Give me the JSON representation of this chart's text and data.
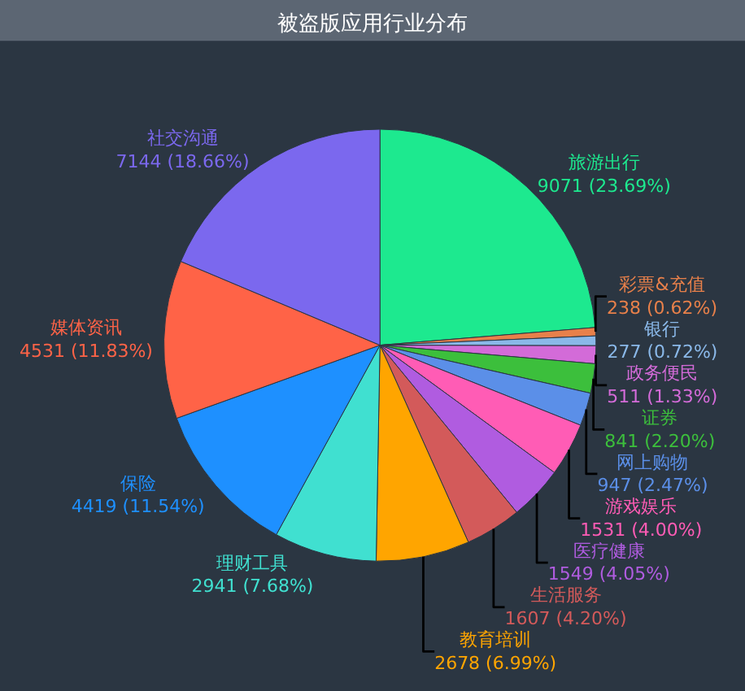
{
  "chart_data": {
    "type": "pie",
    "title": "被盗版应用行业分布",
    "categories": [
      "旅游出行",
      "彩票&充值",
      "银行",
      "政务便民",
      "证券",
      "网上购物",
      "游戏娱乐",
      "医疗健康",
      "生活服务",
      "教育培训",
      "理财工具",
      "保险",
      "媒体资讯",
      "社交沟通"
    ],
    "values": [
      9071,
      238,
      277,
      511,
      841,
      947,
      1531,
      1549,
      1607,
      2678,
      2941,
      4419,
      4531,
      7144
    ],
    "value_labels": [
      "9071 (23.69%)",
      "238 (0.62%)",
      "277 (0.72%)",
      "511 (1.33%)",
      "841 (2.20%)",
      "947 (2.47%)",
      "1531 (4.00%)",
      "1549 (4.05%)",
      "1607 (4.20%)",
      "2678 (6.99%)",
      "2941 (7.68%)",
      "4419 (11.54%)",
      "4531 (11.83%)",
      "7144 (18.66%)"
    ],
    "colors": [
      "#1de98f",
      "#e8804a",
      "#8ab8e8",
      "#d36bd8",
      "#3cbf3c",
      "#5b8fe8",
      "#ff5cb5",
      "#b05ce0",
      "#d35a5a",
      "#ffa500",
      "#40e0d0",
      "#1e90ff",
      "#ff6347",
      "#7b68ee"
    ],
    "legend": false
  }
}
